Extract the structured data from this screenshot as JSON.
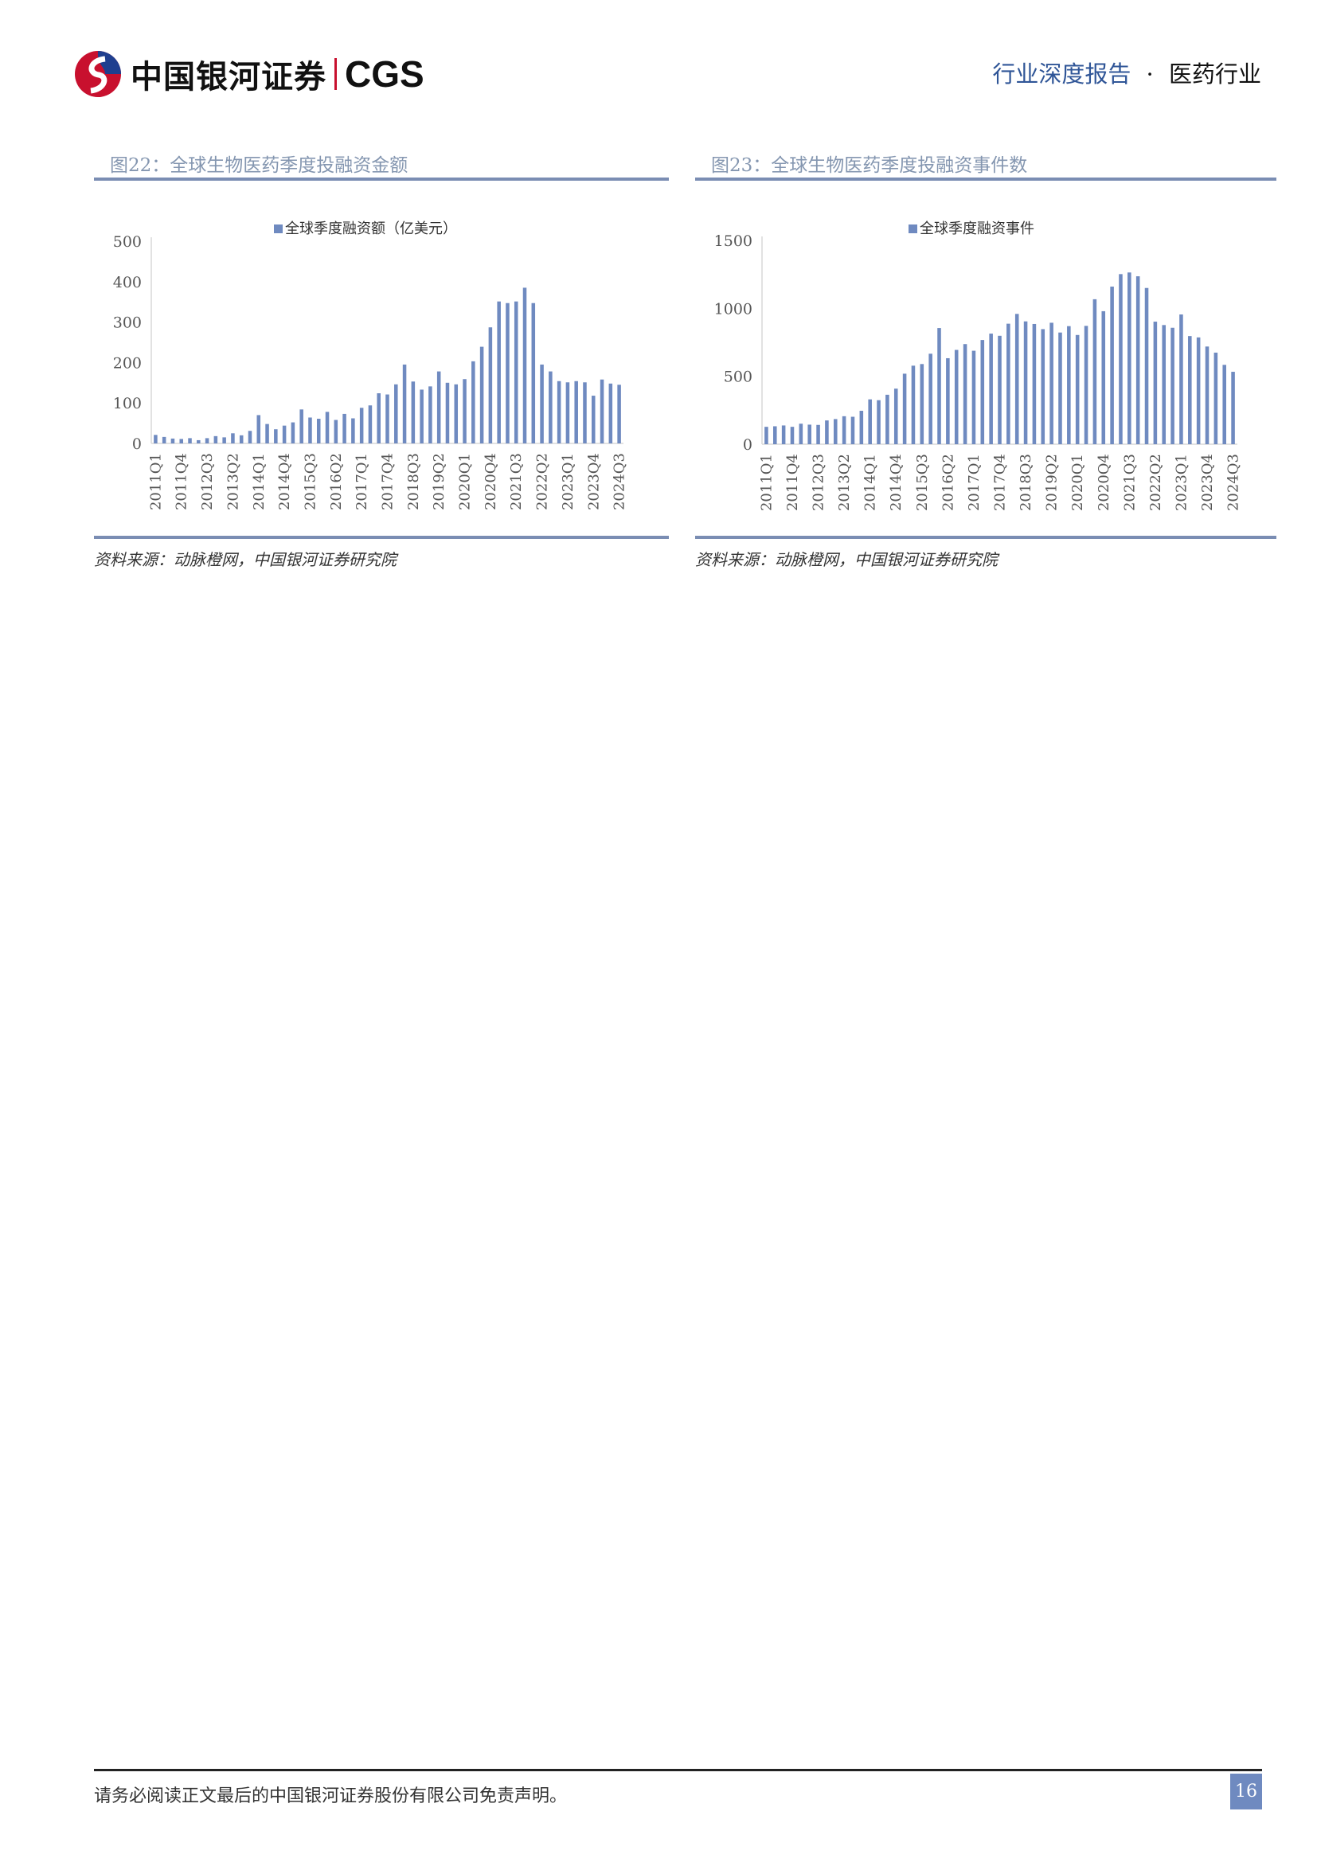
{
  "header": {
    "logo_text": "中国银河证券",
    "logo_cgs": "CGS",
    "report_type": "行业深度报告",
    "separator": "·",
    "industry": "医药行业"
  },
  "figures": [
    {
      "title": "图22：全球生物医药季度投融资金额",
      "source": "资料来源：动脉橙网，中国银河证券研究院"
    },
    {
      "title": "图23：全球生物医药季度投融资事件数",
      "source": "资料来源：动脉橙网，中国银河证券研究院"
    }
  ],
  "chart_data": [
    {
      "type": "bar",
      "title": "",
      "legend": "全球季度融资额（亿美元）",
      "legend_position": "top-center",
      "color": "#6f8ac0",
      "ylim": [
        0,
        500
      ],
      "yticks": [
        0,
        100,
        200,
        300,
        400,
        500
      ],
      "xtick_labels": [
        "2011Q1",
        "2011Q4",
        "2012Q3",
        "2013Q2",
        "2014Q1",
        "2014Q4",
        "2015Q3",
        "2016Q2",
        "2017Q1",
        "2017Q4",
        "2018Q3",
        "2019Q2",
        "2020Q1",
        "2020Q4",
        "2021Q3",
        "2022Q2",
        "2023Q1",
        "2023Q4",
        "2024Q3"
      ],
      "categories": [
        "2011Q1",
        "2011Q2",
        "2011Q3",
        "2011Q4",
        "2012Q1",
        "2012Q2",
        "2012Q3",
        "2012Q4",
        "2013Q1",
        "2013Q2",
        "2013Q3",
        "2013Q4",
        "2014Q1",
        "2014Q2",
        "2014Q3",
        "2014Q4",
        "2015Q1",
        "2015Q2",
        "2015Q3",
        "2015Q4",
        "2016Q1",
        "2016Q2",
        "2016Q3",
        "2016Q4",
        "2017Q1",
        "2017Q2",
        "2017Q3",
        "2017Q4",
        "2018Q1",
        "2018Q2",
        "2018Q3",
        "2018Q4",
        "2019Q1",
        "2019Q2",
        "2019Q3",
        "2019Q4",
        "2020Q1",
        "2020Q2",
        "2020Q3",
        "2020Q4",
        "2021Q1",
        "2021Q2",
        "2021Q3",
        "2021Q4",
        "2022Q1",
        "2022Q2",
        "2022Q3",
        "2022Q4",
        "2023Q1",
        "2023Q2",
        "2023Q3",
        "2023Q4",
        "2024Q1",
        "2024Q2",
        "2024Q3"
      ],
      "values": [
        21,
        16,
        12,
        11,
        13,
        8,
        13,
        18,
        15,
        25,
        20,
        31,
        70,
        48,
        35,
        44,
        52,
        84,
        64,
        61,
        78,
        58,
        73,
        62,
        88,
        94,
        124,
        121,
        146,
        195,
        153,
        133,
        141,
        178,
        150,
        146,
        159,
        203,
        239,
        287,
        351,
        347,
        351,
        385,
        347,
        195,
        178,
        154,
        151,
        154,
        151,
        118,
        158,
        148,
        145
      ]
    },
    {
      "type": "bar",
      "title": "",
      "legend": "全球季度融资事件",
      "legend_position": "top-center",
      "color": "#6f8ac0",
      "ylim": [
        0,
        1500
      ],
      "yticks": [
        0,
        500,
        1000,
        1500
      ],
      "xtick_labels": [
        "2011Q1",
        "2011Q4",
        "2012Q3",
        "2013Q2",
        "2014Q1",
        "2014Q4",
        "2015Q3",
        "2016Q2",
        "2017Q1",
        "2017Q4",
        "2018Q3",
        "2019Q2",
        "2020Q1",
        "2020Q4",
        "2021Q3",
        "2022Q2",
        "2023Q1",
        "2023Q4",
        "2024Q3"
      ],
      "categories": [
        "2011Q1",
        "2011Q2",
        "2011Q3",
        "2011Q4",
        "2012Q1",
        "2012Q2",
        "2012Q3",
        "2012Q4",
        "2013Q1",
        "2013Q2",
        "2013Q3",
        "2013Q4",
        "2014Q1",
        "2014Q2",
        "2014Q3",
        "2014Q4",
        "2015Q1",
        "2015Q2",
        "2015Q3",
        "2015Q4",
        "2016Q1",
        "2016Q2",
        "2016Q3",
        "2016Q4",
        "2017Q1",
        "2017Q2",
        "2017Q3",
        "2017Q4",
        "2018Q1",
        "2018Q2",
        "2018Q3",
        "2018Q4",
        "2019Q1",
        "2019Q2",
        "2019Q3",
        "2019Q4",
        "2020Q1",
        "2020Q2",
        "2020Q3",
        "2020Q4",
        "2021Q1",
        "2021Q2",
        "2021Q3",
        "2021Q4",
        "2022Q1",
        "2022Q2",
        "2022Q3",
        "2022Q4",
        "2023Q1",
        "2023Q2",
        "2023Q3",
        "2023Q4",
        "2024Q1",
        "2024Q2",
        "2024Q3"
      ],
      "values": [
        128,
        132,
        138,
        128,
        151,
        144,
        142,
        175,
        185,
        206,
        202,
        246,
        330,
        324,
        364,
        409,
        519,
        578,
        590,
        666,
        855,
        633,
        694,
        737,
        688,
        767,
        814,
        798,
        887,
        959,
        904,
        885,
        847,
        894,
        822,
        869,
        804,
        871,
        1067,
        979,
        1160,
        1252,
        1264,
        1236,
        1150,
        902,
        877,
        857,
        955,
        796,
        786,
        719,
        674,
        584,
        533
      ]
    }
  ],
  "footer": {
    "disclaimer": "请务必阅读正文最后的中国银河证券股份有限公司免责声明。",
    "page_number": "16"
  }
}
